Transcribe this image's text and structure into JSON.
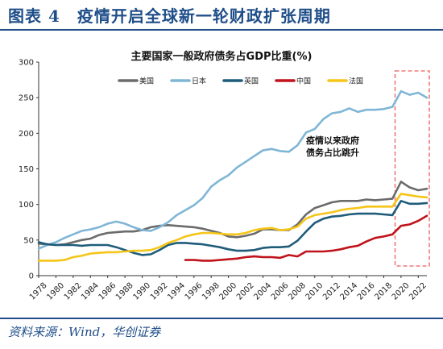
{
  "figure_title": "图表 4　疫情开启全球新一轮财政扩张周期",
  "source_note": "资料来源：Wind，华创证券",
  "chart_data": {
    "type": "line",
    "title": "主要国家一般政府债务占GDP比重(%)",
    "xlabel": "",
    "ylabel": "",
    "xlim": [
      1978,
      2023
    ],
    "ylim": [
      0,
      300
    ],
    "yticks": [
      0,
      50,
      100,
      150,
      200,
      250,
      300
    ],
    "xticks": [
      "1978",
      "1980",
      "1982",
      "1984",
      "1986",
      "1988",
      "1990",
      "1992",
      "1994",
      "1996",
      "1998",
      "2000",
      "2002",
      "2004",
      "2006",
      "2008",
      "2010",
      "2012",
      "2014",
      "2016",
      "2018",
      "2020",
      "2022"
    ],
    "legend_position": "top-left",
    "grid": false,
    "annotation": {
      "lines": [
        "疫情以来政府",
        "债务占比跳升"
      ]
    },
    "highlight_range": [
      2019.5,
      2023
    ],
    "series": [
      {
        "name": "美国",
        "color": "#6b6b6b",
        "x": [
          1978,
          1979,
          1980,
          1981,
          1982,
          1983,
          1984,
          1985,
          1986,
          1987,
          1988,
          1989,
          1990,
          1991,
          1992,
          1993,
          1994,
          1995,
          1996,
          1997,
          1998,
          1999,
          2000,
          2001,
          2002,
          2003,
          2004,
          2005,
          2006,
          2007,
          2008,
          2009,
          2010,
          2011,
          2012,
          2013,
          2014,
          2015,
          2016,
          2017,
          2018,
          2019,
          2020,
          2021,
          2022,
          2023
        ],
        "y": [
          45,
          44,
          43,
          44,
          47,
          50,
          52,
          57,
          60,
          61,
          62,
          62,
          64,
          68,
          70,
          71,
          70,
          69,
          68,
          66,
          63,
          60,
          55,
          54,
          56,
          59,
          65,
          65,
          64,
          64,
          72,
          86,
          95,
          99,
          103,
          105,
          105,
          105,
          107,
          106,
          107,
          108,
          132,
          124,
          120,
          122
        ]
      },
      {
        "name": "日本",
        "color": "#7fb6d6",
        "x": [
          1978,
          1979,
          1980,
          1981,
          1982,
          1983,
          1984,
          1985,
          1986,
          1987,
          1988,
          1989,
          1990,
          1991,
          1992,
          1993,
          1994,
          1995,
          1996,
          1997,
          1998,
          1999,
          2000,
          2001,
          2002,
          2003,
          2004,
          2005,
          2006,
          2007,
          2008,
          2009,
          2010,
          2011,
          2012,
          2013,
          2014,
          2015,
          2016,
          2017,
          2018,
          2019,
          2020,
          2021,
          2022,
          2023
        ],
        "y": [
          38,
          43,
          47,
          53,
          58,
          63,
          65,
          68,
          73,
          76,
          73,
          68,
          64,
          63,
          68,
          75,
          85,
          92,
          99,
          109,
          125,
          134,
          141,
          152,
          160,
          168,
          176,
          178,
          175,
          174,
          183,
          201,
          206,
          220,
          228,
          230,
          235,
          230,
          233,
          233,
          234,
          237,
          259,
          254,
          257,
          250
        ]
      },
      {
        "name": "英国",
        "color": "#1f5c7a",
        "x": [
          1978,
          1979,
          1980,
          1981,
          1982,
          1983,
          1984,
          1985,
          1986,
          1987,
          1988,
          1989,
          1990,
          1991,
          1992,
          1993,
          1994,
          1995,
          1996,
          1997,
          1998,
          1999,
          2000,
          2001,
          2002,
          2003,
          2004,
          2005,
          2006,
          2007,
          2008,
          2009,
          2010,
          2011,
          2012,
          2013,
          2014,
          2015,
          2016,
          2017,
          2018,
          2019,
          2020,
          2021,
          2022,
          2023
        ],
        "y": [
          47,
          44,
          43,
          43,
          43,
          42,
          43,
          43,
          43,
          40,
          36,
          32,
          29,
          30,
          36,
          43,
          46,
          46,
          45,
          44,
          42,
          40,
          37,
          35,
          35,
          36,
          39,
          40,
          40,
          41,
          49,
          62,
          74,
          80,
          83,
          84,
          86,
          87,
          87,
          87,
          86,
          85,
          105,
          101,
          101,
          102
        ]
      },
      {
        "name": "中国",
        "color": "#c0131b",
        "x": [
          1995,
          1996,
          1997,
          1998,
          1999,
          2000,
          2001,
          2002,
          2003,
          2004,
          2005,
          2006,
          2007,
          2008,
          2009,
          2010,
          2011,
          2012,
          2013,
          2014,
          2015,
          2016,
          2017,
          2018,
          2019,
          2020,
          2021,
          2022,
          2023
        ],
        "y": [
          22,
          22,
          21,
          21,
          22,
          23,
          24,
          26,
          27,
          26,
          26,
          25,
          29,
          27,
          34,
          34,
          34,
          35,
          37,
          40,
          42,
          48,
          53,
          55,
          58,
          70,
          72,
          77,
          84
        ]
      },
      {
        "name": "法国",
        "color": "#f5c518",
        "x": [
          1978,
          1979,
          1980,
          1981,
          1982,
          1983,
          1984,
          1985,
          1986,
          1987,
          1988,
          1989,
          1990,
          1991,
          1992,
          1993,
          1994,
          1995,
          1996,
          1997,
          1998,
          1999,
          2000,
          2001,
          2002,
          2003,
          2004,
          2005,
          2006,
          2007,
          2008,
          2009,
          2010,
          2011,
          2012,
          2013,
          2014,
          2015,
          2016,
          2017,
          2018,
          2019,
          2020,
          2021,
          2022,
          2023
        ],
        "y": [
          21,
          21,
          21,
          22,
          26,
          28,
          31,
          32,
          33,
          33,
          34,
          35,
          35,
          36,
          40,
          46,
          50,
          55,
          58,
          60,
          60,
          59,
          58,
          58,
          60,
          64,
          66,
          67,
          64,
          65,
          69,
          80,
          85,
          87,
          89,
          92,
          94,
          95,
          97,
          97,
          97,
          97,
          115,
          113,
          111,
          110
        ]
      }
    ]
  }
}
